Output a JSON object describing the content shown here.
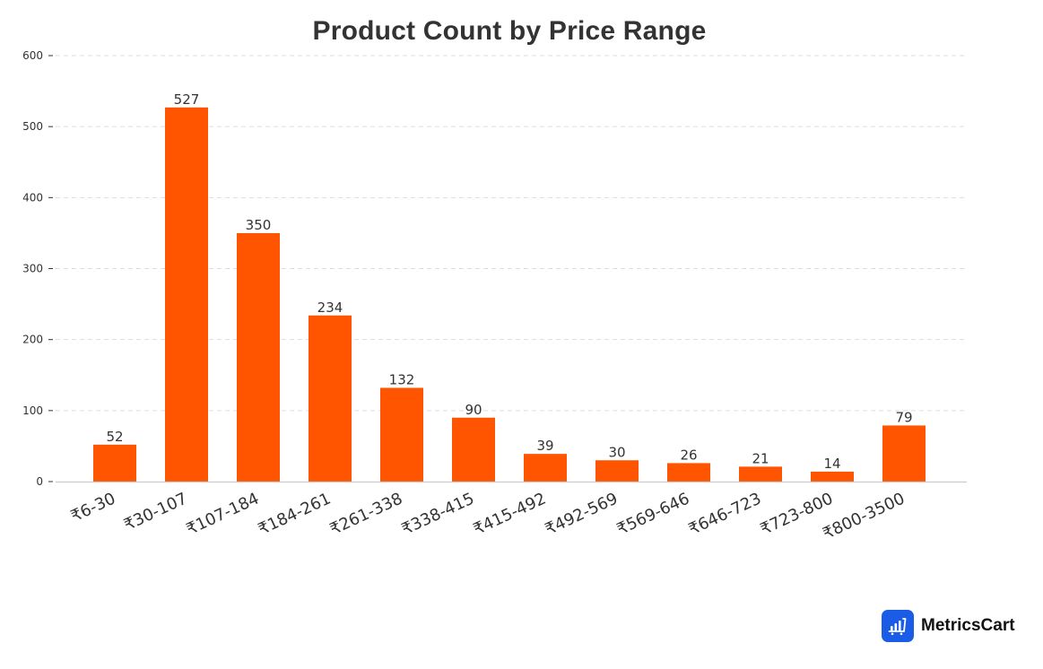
{
  "title": "Product Count by Price Range",
  "colors": {
    "bar": "#ff5500",
    "grid": "#dddddd",
    "axis": "#cccccc",
    "text": "#333333",
    "logo_bg": "#1a5ce6"
  },
  "chart_data": {
    "type": "bar",
    "title": "Product Count by Price Range",
    "xlabel": "",
    "ylabel": "",
    "categories": [
      "₹6-30",
      "₹30-107",
      "₹107-184",
      "₹184-261",
      "₹261-338",
      "₹338-415",
      "₹415-492",
      "₹492-569",
      "₹569-646",
      "₹646-723",
      "₹723-800",
      "₹800-3500"
    ],
    "values": [
      52,
      527,
      350,
      234,
      132,
      90,
      39,
      30,
      26,
      21,
      14,
      79
    ],
    "ylim": [
      0,
      600
    ],
    "yticks": [
      0,
      100,
      200,
      300,
      400,
      500,
      600
    ],
    "grid": true,
    "grid_style": "dashed-horizontal",
    "data_labels": true,
    "legend": null
  },
  "branding": {
    "name": "MetricsCart",
    "icon": "bar-chart-cart-icon"
  }
}
